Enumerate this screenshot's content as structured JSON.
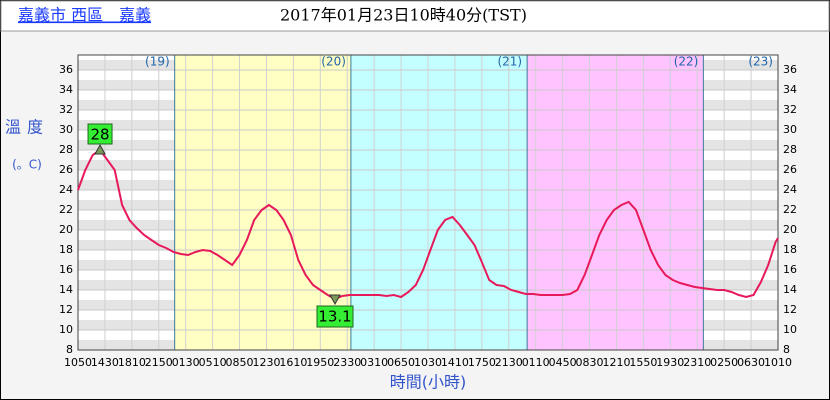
{
  "chart_data": {
    "type": "line",
    "station": "嘉義市 西區　嘉義",
    "title": "2017年01月23日10時40分(TST)",
    "ylabel": "溫度",
    "yunit": "(。C)",
    "xlabel": "時間(小時)",
    "ylim": [
      8,
      37.5
    ],
    "yticks": [
      8,
      10,
      12,
      14,
      16,
      18,
      20,
      22,
      24,
      26,
      28,
      30,
      32,
      34,
      36
    ],
    "xlim": [
      0,
      5720
    ],
    "xticks": [
      {
        "value": 0,
        "label": "1050"
      },
      {
        "value": 220,
        "label": "1430"
      },
      {
        "value": 440,
        "label": "1810"
      },
      {
        "value": 660,
        "label": "2150"
      },
      {
        "value": 880,
        "label": "0130"
      },
      {
        "value": 1100,
        "label": "0510"
      },
      {
        "value": 1320,
        "label": "0850"
      },
      {
        "value": 1540,
        "label": "1230"
      },
      {
        "value": 1760,
        "label": "1610"
      },
      {
        "value": 1980,
        "label": "1950"
      },
      {
        "value": 2200,
        "label": "2330"
      },
      {
        "value": 2420,
        "label": "0310"
      },
      {
        "value": 2640,
        "label": "0650"
      },
      {
        "value": 2860,
        "label": "1030"
      },
      {
        "value": 3080,
        "label": "1410"
      },
      {
        "value": 3300,
        "label": "1750"
      },
      {
        "value": 3520,
        "label": "2130"
      },
      {
        "value": 3740,
        "label": "0110"
      },
      {
        "value": 3960,
        "label": "0450"
      },
      {
        "value": 4180,
        "label": "0830"
      },
      {
        "value": 4400,
        "label": "1210"
      },
      {
        "value": 4620,
        "label": "1550"
      },
      {
        "value": 4840,
        "label": "1930"
      },
      {
        "value": 5060,
        "label": "2310"
      },
      {
        "value": 5280,
        "label": "0250"
      },
      {
        "value": 5500,
        "label": "0630"
      },
      {
        "value": 5720,
        "label": "1010"
      }
    ],
    "days": [
      {
        "label": "(19)",
        "x": 790
      },
      {
        "label": "(20)",
        "x": 2230
      },
      {
        "label": "(21)",
        "x": 3670
      },
      {
        "label": "(22)",
        "x": 5110
      },
      {
        "label": "(23)",
        "x": 5720
      }
    ],
    "bands": [
      {
        "start": 790,
        "end": 2230,
        "color": "#ffffc4"
      },
      {
        "start": 2230,
        "end": 3670,
        "color": "#c4ffff"
      },
      {
        "start": 3670,
        "end": 5110,
        "color": "#ffc4ff"
      }
    ],
    "max": {
      "x": 180,
      "value": 28
    },
    "min": {
      "x": 2100,
      "value": 13.1
    },
    "series": [
      {
        "color": "#e8195a",
        "x": [
          0,
          60,
          120,
          180,
          240,
          300,
          360,
          420,
          480,
          540,
          600,
          660,
          720,
          780,
          840,
          900,
          960,
          1020,
          1080,
          1140,
          1200,
          1260,
          1320,
          1380,
          1440,
          1500,
          1560,
          1620,
          1680,
          1740,
          1800,
          1860,
          1920,
          1980,
          2040,
          2100,
          2160,
          2220,
          2280,
          2340,
          2400,
          2460,
          2520,
          2580,
          2640,
          2700,
          2760,
          2820,
          2880,
          2940,
          3000,
          3060,
          3120,
          3180,
          3240,
          3300,
          3360,
          3420,
          3480,
          3540,
          3600,
          3660,
          3720,
          3780,
          3840,
          3900,
          3960,
          4020,
          4080,
          4140,
          4200,
          4260,
          4320,
          4380,
          4440,
          4500,
          4560,
          4620,
          4680,
          4740,
          4800,
          4860,
          4920,
          4980,
          5040,
          5100,
          5160,
          5220,
          5280,
          5340,
          5400,
          5460,
          5520,
          5580,
          5640,
          5700,
          5720
        ],
        "values": [
          24,
          26,
          27.5,
          28,
          27,
          26,
          22.5,
          21,
          20.2,
          19.5,
          19,
          18.5,
          18.2,
          17.8,
          17.6,
          17.5,
          17.8,
          18,
          17.9,
          17.5,
          17,
          16.5,
          17.5,
          19,
          21,
          22,
          22.5,
          22,
          21,
          19.5,
          17,
          15.5,
          14.5,
          14,
          13.5,
          13.1,
          13.4,
          13.5,
          13.5,
          13.5,
          13.5,
          13.5,
          13.4,
          13.5,
          13.3,
          13.8,
          14.5,
          16,
          18,
          20,
          21,
          21.3,
          20.5,
          19.5,
          18.5,
          16.8,
          15,
          14.5,
          14.4,
          14,
          13.8,
          13.6,
          13.6,
          13.5,
          13.5,
          13.5,
          13.5,
          13.6,
          14,
          15.5,
          17.5,
          19.5,
          21,
          22,
          22.5,
          22.8,
          22,
          20,
          18,
          16.5,
          15.5,
          15,
          14.7,
          14.5,
          14.3,
          14.2,
          14.1,
          14,
          14,
          13.8,
          13.5,
          13.3,
          13.5,
          14.8,
          16.5,
          18.8,
          19.2
        ]
      }
    ]
  }
}
